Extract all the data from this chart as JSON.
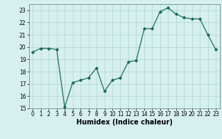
{
  "x": [
    0,
    1,
    2,
    3,
    4,
    5,
    6,
    7,
    8,
    9,
    10,
    11,
    12,
    13,
    14,
    15,
    16,
    17,
    18,
    19,
    20,
    21,
    22,
    23
  ],
  "y": [
    19.6,
    19.9,
    19.9,
    19.8,
    15.1,
    17.1,
    17.3,
    17.5,
    18.3,
    16.4,
    17.3,
    17.5,
    18.8,
    18.9,
    21.5,
    21.5,
    22.9,
    23.2,
    22.7,
    22.4,
    22.3,
    22.3,
    21.0,
    19.8
  ],
  "xlabel": "Humidex (Indice chaleur)",
  "ylim": [
    15,
    23.5
  ],
  "xlim": [
    -0.5,
    23.5
  ],
  "yticks": [
    15,
    16,
    17,
    18,
    19,
    20,
    21,
    22,
    23
  ],
  "xticks": [
    0,
    1,
    2,
    3,
    4,
    5,
    6,
    7,
    8,
    9,
    10,
    11,
    12,
    13,
    14,
    15,
    16,
    17,
    18,
    19,
    20,
    21,
    22,
    23
  ],
  "line_color": "#1a6b5a",
  "marker": "D",
  "marker_size": 1.8,
  "bg_color": "#d6efef",
  "grid_color": "#add4d4",
  "tick_fontsize": 5.5,
  "xlabel_fontsize": 7.0
}
